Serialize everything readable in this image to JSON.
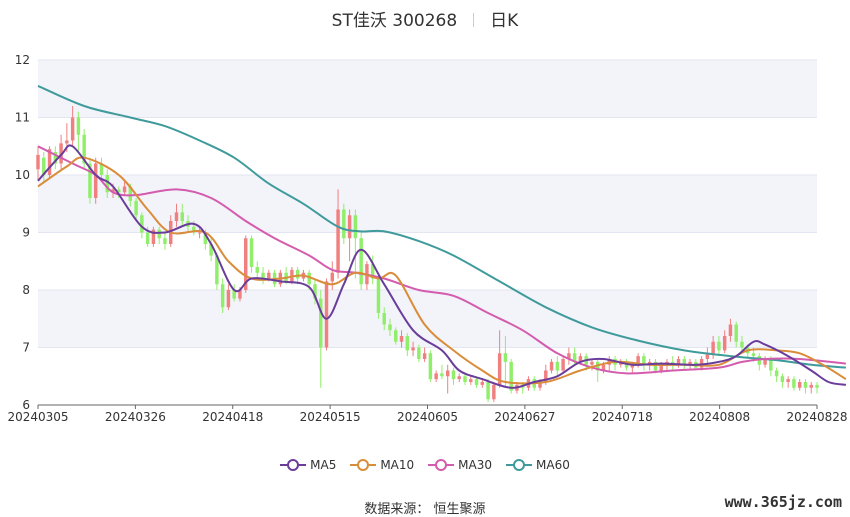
{
  "header": {
    "name": "ST佳沃 300268",
    "period": "日K"
  },
  "source": "数据来源： 恒生聚源",
  "watermark": "www.365jz.com",
  "colors": {
    "up": "#f08080",
    "down": "#90ee6a",
    "ma5": "#6a3d9a",
    "ma10": "#d98c3a",
    "ma30": "#d45cae",
    "ma60": "#3f9b9b",
    "band": "#f3f3fa",
    "grid": "#e3e6f0"
  },
  "chart_data": {
    "type": "candlestick",
    "ylim": [
      6,
      12
    ],
    "yticks": [
      "6",
      "7",
      "8",
      "9",
      "10",
      "11",
      "12"
    ],
    "xticks": [
      "20240305",
      "20240326",
      "20240418",
      "20240515",
      "20240605",
      "20240627",
      "20240718",
      "20240808",
      "20240828"
    ],
    "legend": [
      "MA5",
      "MA10",
      "MA30",
      "MA60"
    ],
    "ma_anchors": {
      "ma5": [
        [
          0,
          9.9
        ],
        [
          4,
          10.35
        ],
        [
          6,
          10.5
        ],
        [
          10,
          10.0
        ],
        [
          13,
          9.8
        ],
        [
          18,
          9.1
        ],
        [
          22,
          9.0
        ],
        [
          27,
          9.15
        ],
        [
          30,
          8.8
        ],
        [
          34,
          8.0
        ],
        [
          37,
          8.2
        ],
        [
          42,
          8.15
        ],
        [
          47,
          8.05
        ],
        [
          50,
          7.5
        ],
        [
          53,
          8.1
        ],
        [
          56,
          8.7
        ],
        [
          60,
          8.1
        ],
        [
          65,
          7.3
        ],
        [
          70,
          6.95
        ],
        [
          73,
          6.6
        ],
        [
          77,
          6.45
        ],
        [
          82,
          6.3
        ],
        [
          86,
          6.4
        ],
        [
          90,
          6.5
        ],
        [
          94,
          6.75
        ],
        [
          98,
          6.8
        ],
        [
          103,
          6.7
        ],
        [
          108,
          6.72
        ],
        [
          114,
          6.7
        ],
        [
          118,
          6.75
        ],
        [
          121,
          6.85
        ],
        [
          124,
          7.1
        ],
        [
          126,
          7.05
        ],
        [
          130,
          6.85
        ],
        [
          134,
          6.6
        ],
        [
          137,
          6.4
        ],
        [
          140,
          6.35
        ]
      ],
      "ma10": [
        [
          0,
          9.8
        ],
        [
          5,
          10.15
        ],
        [
          8,
          10.3
        ],
        [
          14,
          10.0
        ],
        [
          19,
          9.4
        ],
        [
          23,
          9.0
        ],
        [
          29,
          9.0
        ],
        [
          33,
          8.5
        ],
        [
          37,
          8.2
        ],
        [
          42,
          8.2
        ],
        [
          46,
          8.25
        ],
        [
          51,
          8.1
        ],
        [
          55,
          8.3
        ],
        [
          59,
          8.2
        ],
        [
          62,
          8.25
        ],
        [
          67,
          7.4
        ],
        [
          72,
          6.95
        ],
        [
          77,
          6.6
        ],
        [
          81,
          6.4
        ],
        [
          88,
          6.4
        ],
        [
          94,
          6.6
        ],
        [
          100,
          6.75
        ],
        [
          106,
          6.7
        ],
        [
          112,
          6.7
        ],
        [
          118,
          6.7
        ],
        [
          123,
          6.95
        ],
        [
          128,
          6.95
        ],
        [
          132,
          6.9
        ],
        [
          136,
          6.7
        ],
        [
          140,
          6.45
        ]
      ],
      "ma30": [
        [
          0,
          10.5
        ],
        [
          6,
          10.2
        ],
        [
          10,
          10.0
        ],
        [
          13,
          9.7
        ],
        [
          17,
          9.65
        ],
        [
          24,
          9.75
        ],
        [
          30,
          9.6
        ],
        [
          36,
          9.2
        ],
        [
          41,
          8.9
        ],
        [
          47,
          8.6
        ],
        [
          51,
          8.35
        ],
        [
          55,
          8.3
        ],
        [
          60,
          8.2
        ],
        [
          66,
          8.0
        ],
        [
          72,
          7.9
        ],
        [
          78,
          7.6
        ],
        [
          84,
          7.3
        ],
        [
          90,
          6.9
        ],
        [
          96,
          6.65
        ],
        [
          102,
          6.55
        ],
        [
          110,
          6.6
        ],
        [
          118,
          6.65
        ],
        [
          122,
          6.75
        ],
        [
          126,
          6.8
        ],
        [
          132,
          6.8
        ],
        [
          140,
          6.72
        ]
      ],
      "ma60": [
        [
          0,
          11.55
        ],
        [
          8,
          11.2
        ],
        [
          16,
          11.0
        ],
        [
          22,
          10.85
        ],
        [
          28,
          10.6
        ],
        [
          34,
          10.3
        ],
        [
          40,
          9.85
        ],
        [
          46,
          9.5
        ],
        [
          52,
          9.1
        ],
        [
          56,
          9.02
        ],
        [
          60,
          9.02
        ],
        [
          66,
          8.85
        ],
        [
          72,
          8.6
        ],
        [
          80,
          8.15
        ],
        [
          88,
          7.7
        ],
        [
          96,
          7.35
        ],
        [
          104,
          7.12
        ],
        [
          112,
          6.95
        ],
        [
          120,
          6.85
        ],
        [
          128,
          6.78
        ],
        [
          134,
          6.7
        ],
        [
          140,
          6.65
        ]
      ]
    },
    "candles": [
      [
        10.1,
        10.35,
        10.5,
        9.9
      ],
      [
        10.3,
        10.0,
        10.4,
        9.85
      ],
      [
        10.0,
        10.45,
        10.5,
        9.95
      ],
      [
        10.4,
        10.2,
        10.5,
        10.1
      ],
      [
        10.2,
        10.55,
        10.7,
        10.1
      ],
      [
        10.55,
        10.6,
        10.9,
        10.4
      ],
      [
        10.6,
        11.0,
        11.2,
        10.5
      ],
      [
        11.0,
        10.7,
        11.1,
        10.4
      ],
      [
        10.7,
        10.2,
        10.8,
        10.1
      ],
      [
        10.2,
        9.6,
        10.3,
        9.5
      ],
      [
        9.6,
        10.2,
        10.3,
        9.5
      ],
      [
        10.2,
        10.0,
        10.3,
        9.9
      ],
      [
        10.0,
        9.7,
        10.1,
        9.6
      ],
      [
        9.7,
        9.75,
        9.85,
        9.6
      ],
      [
        9.75,
        9.7,
        9.8,
        9.6
      ],
      [
        9.7,
        9.8,
        9.9,
        9.65
      ],
      [
        9.8,
        9.55,
        9.85,
        9.45
      ],
      [
        9.55,
        9.3,
        9.6,
        9.2
      ],
      [
        9.3,
        9.0,
        9.35,
        8.9
      ],
      [
        9.0,
        8.8,
        9.1,
        8.75
      ],
      [
        8.8,
        9.05,
        9.1,
        8.75
      ],
      [
        9.05,
        8.9,
        9.1,
        8.8
      ],
      [
        8.9,
        8.8,
        9.0,
        8.7
      ],
      [
        8.8,
        9.2,
        9.3,
        8.75
      ],
      [
        9.2,
        9.35,
        9.5,
        9.1
      ],
      [
        9.35,
        9.2,
        9.5,
        9.1
      ],
      [
        9.2,
        9.1,
        9.3,
        9.0
      ],
      [
        9.1,
        9.0,
        9.2,
        8.95
      ],
      [
        9.0,
        9.0,
        9.1,
        8.9
      ],
      [
        9.0,
        8.8,
        9.05,
        8.7
      ],
      [
        8.8,
        8.6,
        8.9,
        8.5
      ],
      [
        8.6,
        8.1,
        8.65,
        8.0
      ],
      [
        8.1,
        7.7,
        8.2,
        7.6
      ],
      [
        7.7,
        8.0,
        8.1,
        7.65
      ],
      [
        8.0,
        7.85,
        8.1,
        7.8
      ],
      [
        7.85,
        8.0,
        8.05,
        7.8
      ],
      [
        8.0,
        8.9,
        8.95,
        7.95
      ],
      [
        8.9,
        8.4,
        8.95,
        8.3
      ],
      [
        8.4,
        8.3,
        8.5,
        8.2
      ],
      [
        8.3,
        8.2,
        8.4,
        8.1
      ],
      [
        8.2,
        8.3,
        8.35,
        8.15
      ],
      [
        8.3,
        8.1,
        8.35,
        8.05
      ],
      [
        8.1,
        8.3,
        8.35,
        8.05
      ],
      [
        8.3,
        8.15,
        8.4,
        8.1
      ],
      [
        8.15,
        8.35,
        8.4,
        8.1
      ],
      [
        8.35,
        8.2,
        8.4,
        8.1
      ],
      [
        8.2,
        8.3,
        8.35,
        8.15
      ],
      [
        8.3,
        8.1,
        8.35,
        8.0
      ],
      [
        8.1,
        7.85,
        8.2,
        7.75
      ],
      [
        7.85,
        7.0,
        8.0,
        6.3
      ],
      [
        7.0,
        8.15,
        8.2,
        6.95
      ],
      [
        8.15,
        8.3,
        8.5,
        8.0
      ],
      [
        8.3,
        9.4,
        9.75,
        8.2
      ],
      [
        9.4,
        8.9,
        9.5,
        8.8
      ],
      [
        8.9,
        9.3,
        9.4,
        8.5
      ],
      [
        9.3,
        8.9,
        9.4,
        8.2
      ],
      [
        8.9,
        8.1,
        9.0,
        8.0
      ],
      [
        8.1,
        8.45,
        8.5,
        8.0
      ],
      [
        8.45,
        8.2,
        8.6,
        8.1
      ],
      [
        8.2,
        7.6,
        8.3,
        7.5
      ],
      [
        7.6,
        7.4,
        7.7,
        7.3
      ],
      [
        7.4,
        7.3,
        7.5,
        7.2
      ],
      [
        7.3,
        7.1,
        7.35,
        7.05
      ],
      [
        7.1,
        7.2,
        7.3,
        7.0
      ],
      [
        7.2,
        6.95,
        7.25,
        6.85
      ],
      [
        6.95,
        7.0,
        7.1,
        6.85
      ],
      [
        7.0,
        6.8,
        7.05,
        6.75
      ],
      [
        6.8,
        6.9,
        7.0,
        6.75
      ],
      [
        6.9,
        6.45,
        6.95,
        6.4
      ],
      [
        6.45,
        6.55,
        6.6,
        6.4
      ],
      [
        6.55,
        6.5,
        6.7,
        6.45
      ],
      [
        6.5,
        6.6,
        6.7,
        6.2
      ],
      [
        6.6,
        6.45,
        6.65,
        6.35
      ],
      [
        6.45,
        6.5,
        6.55,
        6.4
      ],
      [
        6.5,
        6.4,
        6.55,
        6.35
      ],
      [
        6.4,
        6.45,
        6.5,
        6.35
      ],
      [
        6.45,
        6.35,
        6.5,
        6.3
      ],
      [
        6.35,
        6.4,
        6.45,
        6.3
      ],
      [
        6.4,
        6.1,
        6.45,
        6.05
      ],
      [
        6.1,
        6.35,
        6.4,
        6.05
      ],
      [
        6.35,
        6.9,
        7.3,
        6.3
      ],
      [
        6.9,
        6.75,
        7.2,
        6.3
      ],
      [
        6.75,
        6.25,
        6.8,
        6.2
      ],
      [
        6.25,
        6.35,
        6.4,
        6.2
      ],
      [
        6.35,
        6.3,
        6.4,
        6.2
      ],
      [
        6.3,
        6.45,
        6.5,
        6.25
      ],
      [
        6.45,
        6.3,
        6.5,
        6.25
      ],
      [
        6.3,
        6.4,
        6.45,
        6.25
      ],
      [
        6.4,
        6.6,
        6.7,
        6.35
      ],
      [
        6.6,
        6.75,
        6.8,
        6.55
      ],
      [
        6.75,
        6.6,
        6.85,
        6.5
      ],
      [
        6.6,
        6.8,
        6.85,
        6.55
      ],
      [
        6.8,
        6.9,
        7.0,
        6.7
      ],
      [
        6.9,
        6.75,
        7.0,
        6.7
      ],
      [
        6.75,
        6.85,
        6.9,
        6.7
      ],
      [
        6.85,
        6.7,
        6.9,
        6.6
      ],
      [
        6.7,
        6.75,
        6.8,
        6.6
      ],
      [
        6.75,
        6.6,
        6.8,
        6.4
      ],
      [
        6.6,
        6.7,
        6.75,
        6.55
      ],
      [
        6.7,
        6.8,
        6.85,
        6.6
      ],
      [
        6.8,
        6.7,
        6.85,
        6.6
      ],
      [
        6.7,
        6.75,
        6.8,
        6.65
      ],
      [
        6.75,
        6.65,
        6.8,
        6.6
      ],
      [
        6.65,
        6.7,
        6.75,
        6.55
      ],
      [
        6.7,
        6.85,
        6.9,
        6.65
      ],
      [
        6.85,
        6.7,
        6.9,
        6.6
      ],
      [
        6.7,
        6.75,
        6.8,
        6.6
      ],
      [
        6.75,
        6.6,
        6.8,
        6.55
      ],
      [
        6.6,
        6.7,
        6.75,
        6.55
      ],
      [
        6.7,
        6.75,
        6.8,
        6.6
      ],
      [
        6.75,
        6.7,
        6.85,
        6.6
      ],
      [
        6.7,
        6.8,
        6.85,
        6.65
      ],
      [
        6.8,
        6.7,
        6.85,
        6.6
      ],
      [
        6.7,
        6.75,
        6.8,
        6.6
      ],
      [
        6.75,
        6.65,
        6.8,
        6.6
      ],
      [
        6.65,
        6.8,
        6.85,
        6.6
      ],
      [
        6.8,
        6.9,
        7.0,
        6.7
      ],
      [
        6.9,
        7.1,
        7.2,
        6.8
      ],
      [
        7.1,
        6.95,
        7.2,
        6.85
      ],
      [
        6.95,
        7.2,
        7.3,
        6.9
      ],
      [
        7.2,
        7.4,
        7.5,
        7.1
      ],
      [
        7.4,
        7.1,
        7.45,
        7.0
      ],
      [
        7.1,
        7.0,
        7.2,
        6.9
      ],
      [
        7.0,
        6.9,
        7.05,
        6.8
      ],
      [
        6.9,
        6.85,
        7.0,
        6.75
      ],
      [
        6.85,
        6.7,
        6.9,
        6.6
      ],
      [
        6.7,
        6.8,
        6.85,
        6.65
      ],
      [
        6.8,
        6.6,
        6.85,
        6.5
      ],
      [
        6.6,
        6.5,
        6.65,
        6.4
      ],
      [
        6.5,
        6.4,
        6.55,
        6.3
      ],
      [
        6.4,
        6.45,
        6.5,
        6.3
      ],
      [
        6.45,
        6.3,
        6.5,
        6.25
      ],
      [
        6.3,
        6.4,
        6.45,
        6.25
      ],
      [
        6.4,
        6.3,
        6.45,
        6.2
      ],
      [
        6.3,
        6.35,
        6.4,
        6.2
      ],
      [
        6.35,
        6.3,
        6.4,
        6.2
      ]
    ]
  }
}
